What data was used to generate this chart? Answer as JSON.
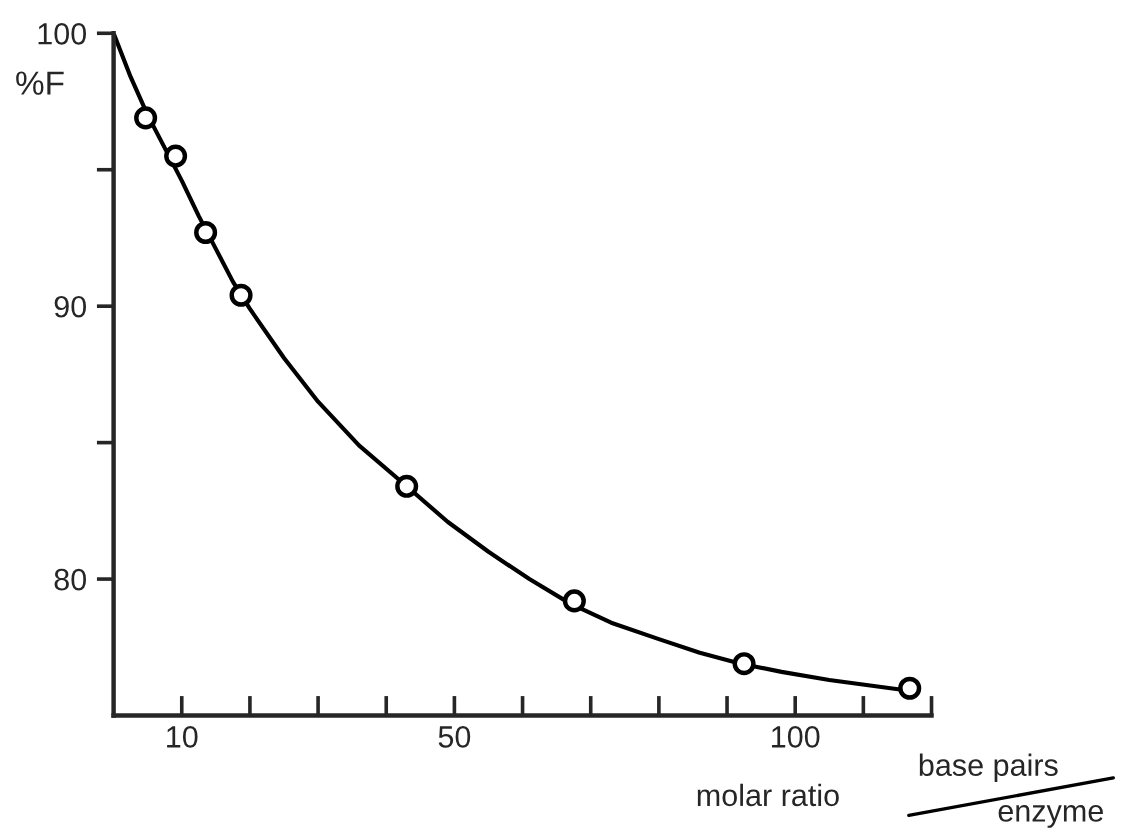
{
  "chart_data": {
    "type": "scatter",
    "ylabel": "%F",
    "xlabel": "molar ratio",
    "annotations": [
      "base pairs",
      "enzyme"
    ],
    "xlim": [
      0,
      120
    ],
    "ylim": [
      75,
      100
    ],
    "xticks": [
      10,
      {
        "value": 20,
        "label": null
      },
      {
        "value": 30,
        "label": null
      },
      {
        "value": 40,
        "label": null
      },
      50,
      {
        "value": 60,
        "label": null
      },
      {
        "value": 70,
        "label": null
      },
      {
        "value": 80,
        "label": null
      },
      {
        "value": 90,
        "label": null
      },
      100,
      {
        "value": 110,
        "label": null
      },
      {
        "value": 120,
        "label": null
      }
    ],
    "yticks": [
      80,
      {
        "value": 85,
        "label": null
      },
      90,
      {
        "value": 95,
        "label": null
      },
      100
    ],
    "grid": false,
    "series": [
      {
        "color": "#000000",
        "marker": "circle",
        "x": [
          4.7,
          9.1,
          13.5,
          18.7,
          43,
          67.6,
          92.5,
          116.8
        ],
        "values": [
          96.9,
          95.5,
          92.7,
          90.4,
          83.4,
          79.2,
          76.9,
          76.0
        ]
      },
      {
        "type": "line",
        "color": "#000000",
        "marker": "none",
        "line_style": "solid",
        "x": [
          0,
          2.5,
          5,
          7.5,
          10,
          12.5,
          15,
          17.5,
          20,
          25,
          30,
          36,
          43,
          49,
          55,
          61,
          67,
          73,
          80,
          86,
          92,
          98,
          105,
          111,
          117
        ],
        "values": [
          100,
          98.4,
          97,
          95.8,
          94.6,
          93.3,
          92.1,
          90.9,
          89.9,
          88.1,
          86.5,
          84.9,
          83.4,
          82.1,
          81,
          80,
          79.1,
          78.4,
          77.8,
          77.3,
          76.9,
          76.6,
          76.3,
          76.1,
          75.9
        ]
      }
    ]
  }
}
